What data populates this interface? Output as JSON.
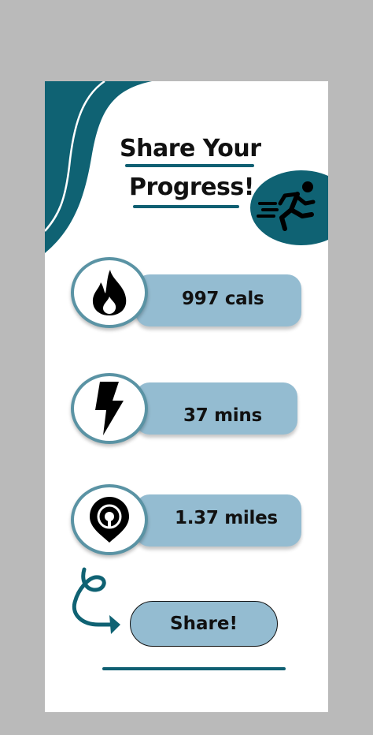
{
  "header": {
    "title_line1": "Share Your",
    "title_line2": "Progress!"
  },
  "stats": [
    {
      "icon": "flame-icon",
      "value": "997 cals"
    },
    {
      "icon": "lightning-bolt-icon",
      "value": "37 mins"
    },
    {
      "icon": "location-pin-icon",
      "value": "1.37 miles"
    }
  ],
  "actions": {
    "share_label": "Share!"
  },
  "icons": {
    "header_badge": "running-person-icon",
    "arrow": "curly-arrow-icon"
  },
  "colors": {
    "teal": "#0f6273",
    "pill": "#94bcd1",
    "ring": "#5a93a4",
    "background": "#bababa",
    "card": "#ffffff"
  }
}
